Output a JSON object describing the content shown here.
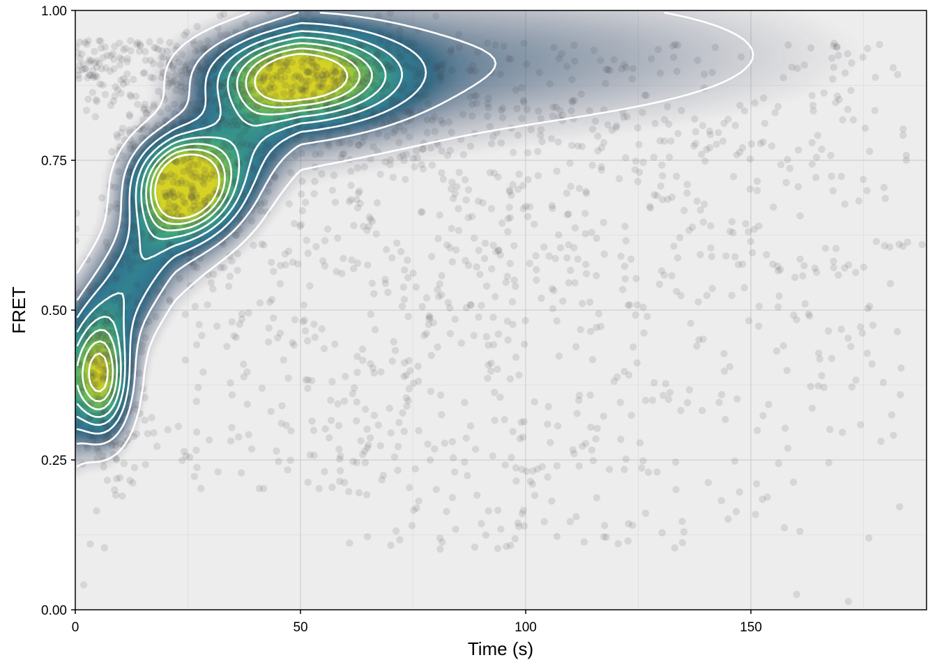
{
  "chart_data": {
    "type": "scatter",
    "subtype": "scatter with 2D density heatmap and contour lines",
    "title": "",
    "xlabel": "Time (s)",
    "ylabel": "FRET",
    "xlim": [
      0,
      189
    ],
    "ylim": [
      0,
      1
    ],
    "x_ticks": [
      {
        "value": 0,
        "label": "0"
      },
      {
        "value": 50,
        "label": "50"
      },
      {
        "value": 100,
        "label": "100"
      },
      {
        "value": 150,
        "label": "150"
      }
    ],
    "y_ticks": [
      {
        "value": 0,
        "label": "0.00"
      },
      {
        "value": 0.25,
        "label": "0.25"
      },
      {
        "value": 0.5,
        "label": "0.50"
      },
      {
        "value": 0.75,
        "label": "0.75"
      },
      {
        "value": 1,
        "label": "1.00"
      }
    ],
    "minor_grid": {
      "x": [
        25,
        75,
        125,
        175
      ],
      "y": [
        0.125,
        0.375,
        0.625,
        0.875
      ]
    },
    "grid": true,
    "legend": "none",
    "density_peaks": [
      {
        "x": 6,
        "y": 0.38,
        "level": 0.75,
        "label": ""
      },
      {
        "x": 24,
        "y": 0.71,
        "level": 1.0,
        "label": ""
      },
      {
        "x": 50,
        "y": 0.89,
        "level": 0.85,
        "label": ""
      }
    ],
    "contour_levels": [
      0.08,
      0.2,
      0.32,
      0.44,
      0.56,
      0.68,
      0.8,
      0.92
    ],
    "colors": {
      "panel_background": "#ededed",
      "grid_major": "#c8c8c8",
      "grid_minor": "#dcdcdc",
      "points": "#3c3c46",
      "contour": "#ffffff",
      "colormap": [
        "#2f2a4a",
        "#2b4e6e",
        "#21718a",
        "#2a9a7c",
        "#74bc3e",
        "#d4cf14"
      ]
    }
  }
}
